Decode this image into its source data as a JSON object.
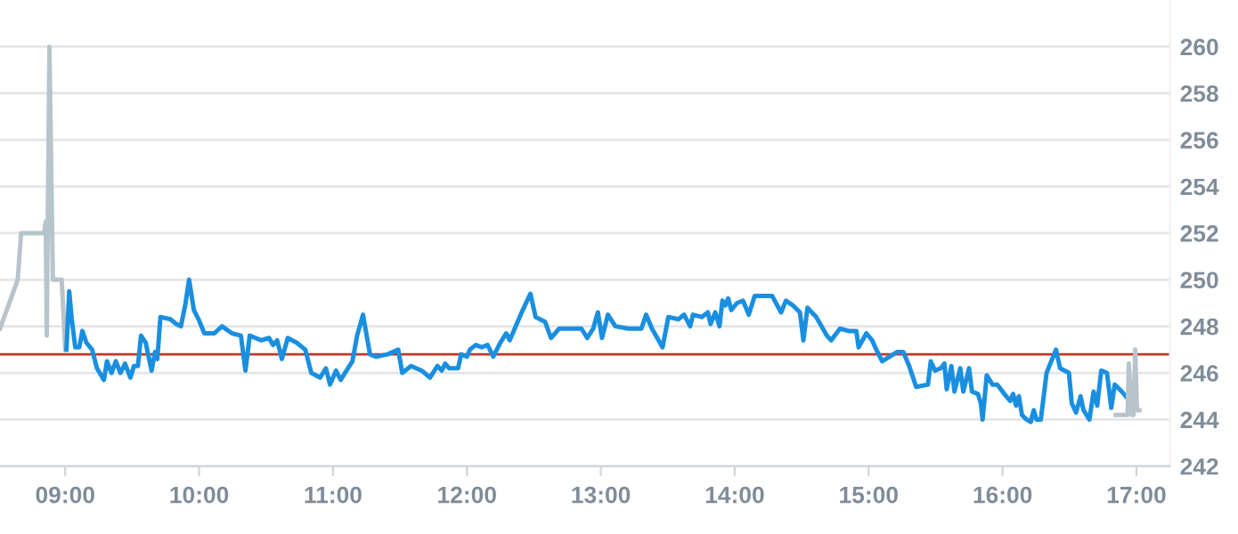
{
  "chart_data": {
    "type": "line",
    "xlim": [
      8.513,
      17.25
    ],
    "ylim": [
      242,
      262
    ],
    "xticks": [
      {
        "value": 9,
        "label": "09:00"
      },
      {
        "value": 10,
        "label": "10:00"
      },
      {
        "value": 11,
        "label": "11:00"
      },
      {
        "value": 12,
        "label": "12:00"
      },
      {
        "value": 13,
        "label": "13:00"
      },
      {
        "value": 14,
        "label": "14:00"
      },
      {
        "value": 15,
        "label": "15:00"
      },
      {
        "value": 16,
        "label": "16:00"
      },
      {
        "value": 17,
        "label": "17:00"
      }
    ],
    "yticks": [
      242,
      244,
      246,
      248,
      250,
      252,
      254,
      256,
      258,
      260
    ],
    "grid": "y",
    "marker": "none",
    "line_style": "solid",
    "ref_lines": [
      {
        "axis": "y",
        "value": 246.8,
        "color": "#c0392b"
      }
    ],
    "series": [
      {
        "color": "#b8c4cc",
        "x": [
          8.513,
          8.645,
          8.671,
          8.842,
          8.855,
          8.862,
          8.882,
          8.908,
          8.974,
          9.0
        ],
        "values": [
          247.9,
          250.0,
          252.0,
          252.0,
          252.5,
          247.6,
          260.0,
          250.0,
          250.0,
          247.0
        ]
      },
      {
        "color": "#1a8fe0",
        "x": [
          9.009,
          9.03,
          9.049,
          9.075,
          9.105,
          9.128,
          9.158,
          9.201,
          9.237,
          9.289,
          9.312,
          9.346,
          9.378,
          9.412,
          9.447,
          9.487,
          9.513,
          9.543,
          9.566,
          9.601,
          9.645,
          9.671,
          9.688,
          9.711,
          9.786,
          9.829,
          9.864,
          9.899,
          9.925,
          9.961,
          9.996,
          10.039,
          10.114,
          10.171,
          10.246,
          10.312,
          10.346,
          10.378,
          10.464,
          10.522,
          10.553,
          10.583,
          10.618,
          10.662,
          10.728,
          10.793,
          10.838,
          10.904,
          10.947,
          10.978,
          11.022,
          11.057,
          11.145,
          11.18,
          11.224,
          11.276,
          11.32,
          11.408,
          11.487,
          11.517,
          11.583,
          11.662,
          11.724,
          11.78,
          11.812,
          11.838,
          11.868,
          11.934,
          11.957,
          12.0,
          12.022,
          12.066,
          12.109,
          12.154,
          12.197,
          12.25,
          12.293,
          12.32,
          12.364,
          12.417,
          12.474,
          12.513,
          12.583,
          12.628,
          12.688,
          12.855,
          12.899,
          12.943,
          12.978,
          13.009,
          13.053,
          13.109,
          13.207,
          13.303,
          13.338,
          13.382,
          13.461,
          13.504,
          13.579,
          13.622,
          13.667,
          13.688,
          13.754,
          13.799,
          13.82,
          13.855,
          13.886,
          13.908,
          13.93,
          13.951,
          13.974,
          14.017,
          14.062,
          14.105,
          14.149,
          14.28,
          14.346,
          14.382,
          14.434,
          14.487,
          14.513,
          14.543,
          14.609,
          14.688,
          14.72,
          14.786,
          14.851,
          14.908,
          14.925,
          14.983,
          15.026,
          15.057,
          15.101,
          15.158,
          15.214,
          15.259,
          15.303,
          15.355,
          15.443,
          15.464,
          15.496,
          15.539,
          15.566,
          15.583,
          15.618,
          15.641,
          15.684,
          15.707,
          15.75,
          15.772,
          15.816,
          15.838,
          15.851,
          15.882,
          15.925,
          15.961,
          16.013,
          16.057,
          16.079,
          16.101,
          16.122,
          16.145,
          16.18,
          16.211,
          16.233,
          16.254,
          16.286,
          16.329,
          16.399,
          16.43,
          16.496,
          16.517,
          16.549,
          16.583,
          16.605,
          16.649,
          16.68,
          16.707,
          16.737,
          16.78,
          16.812,
          16.838,
          16.891,
          16.934
        ],
        "values": [
          247.0,
          249.5,
          248.3,
          247.1,
          247.1,
          247.8,
          247.3,
          247.0,
          246.2,
          245.7,
          246.5,
          246.0,
          246.5,
          246.0,
          246.4,
          245.8,
          246.3,
          246.3,
          247.6,
          247.3,
          246.1,
          246.9,
          246.6,
          248.4,
          248.3,
          248.1,
          248.0,
          249.0,
          250.0,
          248.7,
          248.3,
          247.7,
          247.7,
          248.0,
          247.7,
          247.6,
          246.1,
          247.6,
          247.4,
          247.5,
          247.2,
          247.4,
          246.6,
          247.5,
          247.3,
          247.0,
          246.0,
          245.8,
          246.2,
          245.5,
          246.1,
          245.7,
          246.5,
          247.6,
          248.5,
          246.8,
          246.7,
          246.8,
          247.0,
          246.0,
          246.3,
          246.1,
          245.8,
          246.3,
          246.1,
          246.4,
          246.2,
          246.2,
          246.8,
          246.7,
          247.0,
          247.2,
          247.1,
          247.2,
          246.7,
          247.3,
          247.7,
          247.4,
          248.0,
          248.7,
          249.4,
          248.4,
          248.2,
          247.5,
          247.9,
          247.9,
          247.5,
          247.9,
          248.6,
          247.5,
          248.5,
          248.0,
          247.9,
          247.9,
          248.5,
          247.9,
          247.1,
          248.4,
          248.3,
          248.5,
          248.0,
          248.5,
          248.4,
          248.6,
          248.1,
          248.6,
          248.0,
          249.1,
          248.9,
          249.2,
          248.7,
          249.0,
          249.1,
          248.5,
          249.3,
          249.3,
          248.6,
          249.1,
          248.9,
          248.6,
          247.4,
          248.8,
          248.4,
          247.6,
          247.4,
          247.9,
          247.8,
          247.8,
          247.1,
          247.7,
          247.4,
          247.0,
          246.5,
          246.7,
          246.9,
          246.9,
          246.3,
          245.4,
          245.5,
          246.5,
          246.1,
          246.2,
          246.4,
          245.3,
          246.3,
          245.2,
          246.2,
          245.2,
          246.2,
          245.2,
          245.1,
          244.7,
          244.0,
          245.9,
          245.5,
          245.5,
          245.1,
          244.8,
          245.1,
          244.6,
          245.0,
          244.2,
          244.0,
          243.9,
          244.4,
          244.0,
          244.0,
          246.0,
          247.0,
          246.2,
          246.0,
          244.7,
          244.3,
          245.0,
          244.4,
          244.0,
          245.2,
          244.6,
          246.1,
          246.0,
          244.5,
          245.5,
          245.2,
          244.9
        ]
      },
      {
        "color": "#b8c4cc",
        "x": [
          16.846,
          16.934,
          16.943,
          16.964,
          16.978,
          16.991,
          17.004,
          17.022
        ],
        "values": [
          244.2,
          244.2,
          246.4,
          244.2,
          244.2,
          247.0,
          244.4,
          244.4
        ]
      }
    ]
  }
}
